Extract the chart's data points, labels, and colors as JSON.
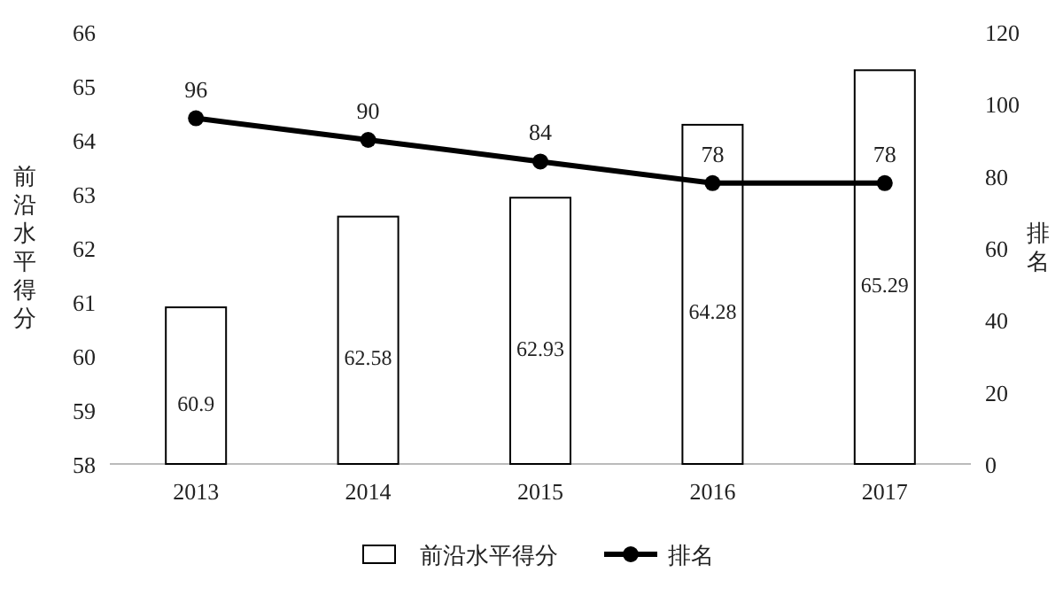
{
  "chart_data": {
    "type": "bar",
    "categories": [
      "2013",
      "2014",
      "2015",
      "2016",
      "2017"
    ],
    "series": [
      {
        "name": "前沿水平得分",
        "color": "#ffffff",
        "values": [
          60.9,
          62.58,
          62.93,
          64.28,
          65.29
        ]
      },
      {
        "name": "排名",
        "type": "line",
        "axis": "y2",
        "color": "#000000",
        "values": [
          96,
          90,
          84,
          78,
          78
        ]
      }
    ],
    "ylabel": "前沿水平得分",
    "y2label": "排名",
    "ylim": [
      58,
      66
    ],
    "yticks": [
      58,
      59,
      60,
      61,
      62,
      63,
      64,
      65,
      66
    ],
    "y2lim": [
      0,
      120
    ],
    "y2ticks": [
      0,
      20,
      40,
      60,
      80,
      100,
      120
    ],
    "data_labels": true,
    "legend": "bottom",
    "marker": "circle"
  }
}
